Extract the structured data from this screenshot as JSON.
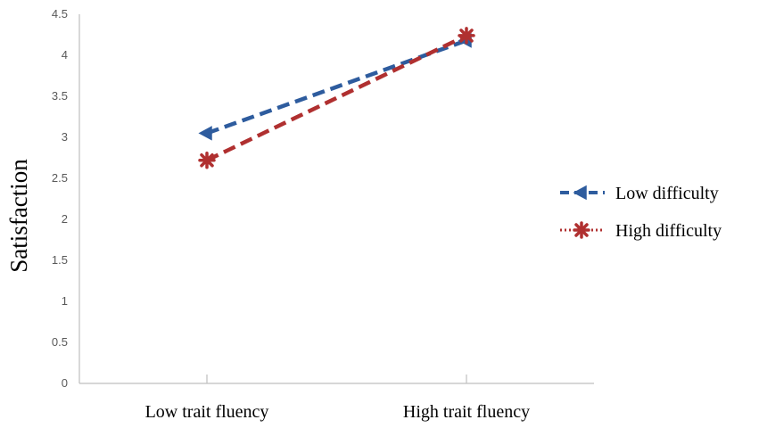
{
  "chart_data": {
    "type": "line",
    "categories": [
      "Low trait fluency",
      "High trait fluency"
    ],
    "ylabel": "Satisfaction",
    "xlabel": "",
    "ylim": [
      0,
      4.5
    ],
    "yticks": [
      "0",
      "0.5",
      "1",
      "1.5",
      "2",
      "2.5",
      "3",
      "3.5",
      "4",
      "4.5"
    ],
    "grid": false,
    "legend_position": "right",
    "series": [
      {
        "name": "Low difficulty",
        "values": [
          3.05,
          4.18
        ],
        "color": "#2e5c9e",
        "marker": "triangle-left"
      },
      {
        "name": "High difficulty",
        "values": [
          2.72,
          4.24
        ],
        "color": "#b03030",
        "marker": "x-cross"
      }
    ]
  }
}
